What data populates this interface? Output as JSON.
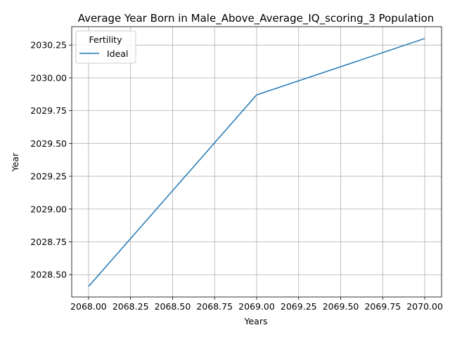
{
  "chart_data": {
    "type": "line",
    "title": "Average Year Born in Male_Above_Average_IQ_scoring_3 Population",
    "xlabel": "Years",
    "ylabel": "Year",
    "x_ticks": [
      "2068.00",
      "2068.25",
      "2068.50",
      "2068.75",
      "2069.00",
      "2069.25",
      "2069.50",
      "2069.75",
      "2070.00"
    ],
    "y_ticks": [
      "2028.50",
      "2028.75",
      "2029.00",
      "2029.25",
      "2029.50",
      "2029.75",
      "2030.00",
      "2030.25"
    ],
    "xlim": [
      2067.9,
      2070.1
    ],
    "ylim": [
      2028.33,
      2030.39
    ],
    "grid": true,
    "legend": {
      "title": "Fertility",
      "placement": "top-left"
    },
    "series": [
      {
        "name": "Ideal",
        "color": "#1f77b4",
        "x": [
          2068,
          2069,
          2070
        ],
        "y": [
          2028.41,
          2029.87,
          2030.3
        ]
      }
    ]
  }
}
